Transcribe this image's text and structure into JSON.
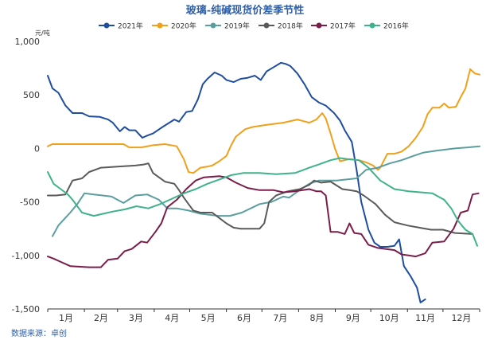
{
  "chart_data": {
    "type": "line",
    "title": "玻璃-纯碱现货价差季节性",
    "unit_label": "元/吨",
    "source": "数据来源：卓创",
    "ylim": [
      -1500,
      1000
    ],
    "yticks": [
      1000,
      500,
      0,
      -500,
      -1000,
      -1500
    ],
    "ytick_labels": [
      "1,000",
      "500",
      "0",
      "-500",
      "-1,000",
      "-1,500"
    ],
    "xlim": [
      1,
      366
    ],
    "month_labels": [
      "1月",
      "2月",
      "3月",
      "4月",
      "5月",
      "6月",
      "7月",
      "8月",
      "9月",
      "10月",
      "11月",
      "12月"
    ],
    "grid": false,
    "legend_position": "top",
    "series": [
      {
        "name": "2021年",
        "color": "#1f4e9e",
        "points": [
          [
            1,
            680
          ],
          [
            5,
            560
          ],
          [
            10,
            520
          ],
          [
            16,
            400
          ],
          [
            22,
            330
          ],
          [
            30,
            330
          ],
          [
            36,
            300
          ],
          [
            45,
            295
          ],
          [
            52,
            270
          ],
          [
            56,
            240
          ],
          [
            62,
            160
          ],
          [
            66,
            200
          ],
          [
            70,
            170
          ],
          [
            75,
            170
          ],
          [
            81,
            100
          ],
          [
            85,
            120
          ],
          [
            90,
            140
          ],
          [
            98,
            200
          ],
          [
            108,
            270
          ],
          [
            112,
            250
          ],
          [
            118,
            340
          ],
          [
            123,
            350
          ],
          [
            128,
            460
          ],
          [
            132,
            600
          ],
          [
            136,
            650
          ],
          [
            142,
            710
          ],
          [
            148,
            680
          ],
          [
            152,
            640
          ],
          [
            158,
            620
          ],
          [
            164,
            650
          ],
          [
            170,
            660
          ],
          [
            176,
            680
          ],
          [
            181,
            640
          ],
          [
            186,
            720
          ],
          [
            192,
            760
          ],
          [
            198,
            800
          ],
          [
            202,
            790
          ],
          [
            206,
            770
          ],
          [
            212,
            700
          ],
          [
            218,
            600
          ],
          [
            224,
            480
          ],
          [
            230,
            430
          ],
          [
            236,
            400
          ],
          [
            243,
            330
          ],
          [
            248,
            260
          ],
          [
            252,
            170
          ],
          [
            258,
            60
          ],
          [
            262,
            -200
          ],
          [
            266,
            -500
          ],
          [
            272,
            -760
          ],
          [
            277,
            -880
          ],
          [
            282,
            -920
          ],
          [
            288,
            -920
          ],
          [
            294,
            -910
          ],
          [
            298,
            -850
          ],
          [
            302,
            -1100
          ],
          [
            308,
            -1200
          ],
          [
            313,
            -1300
          ],
          [
            316,
            -1440
          ],
          [
            320,
            -1410
          ]
        ]
      },
      {
        "name": "2020年",
        "color": "#f0a019",
        "points": [
          [
            1,
            20
          ],
          [
            5,
            40
          ],
          [
            12,
            40
          ],
          [
            40,
            40
          ],
          [
            65,
            40
          ],
          [
            70,
            10
          ],
          [
            80,
            10
          ],
          [
            90,
            30
          ],
          [
            100,
            40
          ],
          [
            110,
            20
          ],
          [
            116,
            -100
          ],
          [
            120,
            -220
          ],
          [
            124,
            -230
          ],
          [
            130,
            -180
          ],
          [
            136,
            -170
          ],
          [
            140,
            -160
          ],
          [
            146,
            -120
          ],
          [
            152,
            -70
          ],
          [
            156,
            30
          ],
          [
            160,
            110
          ],
          [
            168,
            180
          ],
          [
            174,
            200
          ],
          [
            186,
            220
          ],
          [
            200,
            240
          ],
          [
            212,
            270
          ],
          [
            222,
            240
          ],
          [
            228,
            270
          ],
          [
            233,
            330
          ],
          [
            236,
            280
          ],
          [
            240,
            140
          ],
          [
            244,
            -10
          ],
          [
            248,
            -120
          ],
          [
            252,
            -110
          ],
          [
            256,
            -100
          ],
          [
            264,
            -110
          ],
          [
            270,
            -130
          ],
          [
            276,
            -160
          ],
          [
            280,
            -200
          ],
          [
            282,
            -180
          ],
          [
            288,
            -50
          ],
          [
            294,
            -50
          ],
          [
            300,
            -30
          ],
          [
            306,
            20
          ],
          [
            312,
            100
          ],
          [
            318,
            200
          ],
          [
            322,
            320
          ],
          [
            326,
            380
          ],
          [
            332,
            380
          ],
          [
            336,
            420
          ],
          [
            340,
            380
          ],
          [
            346,
            390
          ],
          [
            350,
            480
          ],
          [
            354,
            560
          ],
          [
            358,
            740
          ],
          [
            362,
            700
          ],
          [
            366,
            690
          ]
        ]
      },
      {
        "name": "2019年",
        "color": "#5b9ea0",
        "points": [
          [
            5,
            -820
          ],
          [
            10,
            -720
          ],
          [
            15,
            -660
          ],
          [
            20,
            -600
          ],
          [
            26,
            -520
          ],
          [
            32,
            -420
          ],
          [
            40,
            -430
          ],
          [
            55,
            -450
          ],
          [
            65,
            -510
          ],
          [
            75,
            -440
          ],
          [
            85,
            -430
          ],
          [
            95,
            -480
          ],
          [
            102,
            -560
          ],
          [
            110,
            -560
          ],
          [
            120,
            -580
          ],
          [
            130,
            -610
          ],
          [
            145,
            -630
          ],
          [
            155,
            -630
          ],
          [
            165,
            -600
          ],
          [
            180,
            -520
          ],
          [
            190,
            -500
          ],
          [
            200,
            -450
          ],
          [
            205,
            -460
          ],
          [
            215,
            -380
          ],
          [
            222,
            -330
          ],
          [
            230,
            -300
          ],
          [
            245,
            -300
          ],
          [
            262,
            -280
          ],
          [
            270,
            -200
          ],
          [
            280,
            -180
          ],
          [
            290,
            -140
          ],
          [
            300,
            -110
          ],
          [
            310,
            -70
          ],
          [
            318,
            -40
          ],
          [
            330,
            -20
          ],
          [
            345,
            0
          ],
          [
            356,
            10
          ],
          [
            366,
            20
          ]
        ]
      },
      {
        "name": "2018年",
        "color": "#5a5a5a",
        "points": [
          [
            1,
            -440
          ],
          [
            8,
            -440
          ],
          [
            16,
            -430
          ],
          [
            22,
            -300
          ],
          [
            30,
            -280
          ],
          [
            36,
            -220
          ],
          [
            46,
            -180
          ],
          [
            60,
            -170
          ],
          [
            75,
            -160
          ],
          [
            82,
            -150
          ],
          [
            86,
            -140
          ],
          [
            90,
            -230
          ],
          [
            100,
            -310
          ],
          [
            108,
            -330
          ],
          [
            112,
            -390
          ],
          [
            116,
            -460
          ],
          [
            120,
            -520
          ],
          [
            124,
            -580
          ],
          [
            130,
            -600
          ],
          [
            140,
            -600
          ],
          [
            146,
            -650
          ],
          [
            152,
            -700
          ],
          [
            158,
            -740
          ],
          [
            164,
            -750
          ],
          [
            180,
            -750
          ],
          [
            184,
            -700
          ],
          [
            188,
            -500
          ],
          [
            194,
            -440
          ],
          [
            204,
            -400
          ],
          [
            214,
            -380
          ],
          [
            222,
            -340
          ],
          [
            226,
            -300
          ],
          [
            232,
            -320
          ],
          [
            240,
            -310
          ],
          [
            250,
            -380
          ],
          [
            256,
            -390
          ],
          [
            262,
            -400
          ],
          [
            268,
            -440
          ],
          [
            278,
            -520
          ],
          [
            286,
            -620
          ],
          [
            294,
            -690
          ],
          [
            305,
            -720
          ],
          [
            315,
            -740
          ],
          [
            325,
            -760
          ],
          [
            335,
            -760
          ],
          [
            345,
            -790
          ],
          [
            360,
            -800
          ]
        ]
      },
      {
        "name": "2017年",
        "color": "#7a1d4a",
        "points": [
          [
            1,
            -1010
          ],
          [
            6,
            -1030
          ],
          [
            12,
            -1060
          ],
          [
            20,
            -1100
          ],
          [
            36,
            -1110
          ],
          [
            46,
            -1110
          ],
          [
            52,
            -1040
          ],
          [
            60,
            -1030
          ],
          [
            66,
            -960
          ],
          [
            72,
            -940
          ],
          [
            80,
            -870
          ],
          [
            85,
            -880
          ],
          [
            92,
            -780
          ],
          [
            97,
            -700
          ],
          [
            102,
            -550
          ],
          [
            110,
            -480
          ],
          [
            118,
            -380
          ],
          [
            126,
            -300
          ],
          [
            133,
            -270
          ],
          [
            146,
            -260
          ],
          [
            152,
            -270
          ],
          [
            160,
            -320
          ],
          [
            170,
            -370
          ],
          [
            180,
            -390
          ],
          [
            192,
            -390
          ],
          [
            200,
            -410
          ],
          [
            210,
            -400
          ],
          [
            222,
            -380
          ],
          [
            228,
            -400
          ],
          [
            232,
            -400
          ],
          [
            236,
            -440
          ],
          [
            240,
            -780
          ],
          [
            246,
            -780
          ],
          [
            252,
            -800
          ],
          [
            256,
            -700
          ],
          [
            260,
            -790
          ],
          [
            266,
            -800
          ],
          [
            272,
            -900
          ],
          [
            280,
            -930
          ],
          [
            294,
            -950
          ],
          [
            300,
            -990
          ],
          [
            306,
            -1000
          ],
          [
            312,
            -1010
          ],
          [
            320,
            -980
          ],
          [
            326,
            -880
          ],
          [
            336,
            -870
          ],
          [
            344,
            -750
          ],
          [
            350,
            -600
          ],
          [
            356,
            -580
          ],
          [
            360,
            -430
          ],
          [
            365,
            -420
          ]
        ]
      },
      {
        "name": "2016年",
        "color": "#3fb28b",
        "points": [
          [
            1,
            -220
          ],
          [
            6,
            -330
          ],
          [
            12,
            -380
          ],
          [
            18,
            -430
          ],
          [
            22,
            -480
          ],
          [
            30,
            -600
          ],
          [
            40,
            -630
          ],
          [
            56,
            -590
          ],
          [
            66,
            -570
          ],
          [
            76,
            -540
          ],
          [
            86,
            -560
          ],
          [
            96,
            -520
          ],
          [
            106,
            -470
          ],
          [
            116,
            -420
          ],
          [
            126,
            -380
          ],
          [
            136,
            -330
          ],
          [
            146,
            -290
          ],
          [
            156,
            -250
          ],
          [
            166,
            -230
          ],
          [
            180,
            -230
          ],
          [
            194,
            -240
          ],
          [
            210,
            -230
          ],
          [
            222,
            -180
          ],
          [
            230,
            -150
          ],
          [
            240,
            -110
          ],
          [
            248,
            -90
          ],
          [
            254,
            -100
          ],
          [
            264,
            -110
          ],
          [
            272,
            -180
          ],
          [
            282,
            -300
          ],
          [
            294,
            -380
          ],
          [
            306,
            -400
          ],
          [
            316,
            -410
          ],
          [
            326,
            -420
          ],
          [
            336,
            -480
          ],
          [
            342,
            -560
          ],
          [
            348,
            -680
          ],
          [
            354,
            -760
          ],
          [
            360,
            -800
          ],
          [
            364,
            -910
          ]
        ]
      }
    ]
  }
}
